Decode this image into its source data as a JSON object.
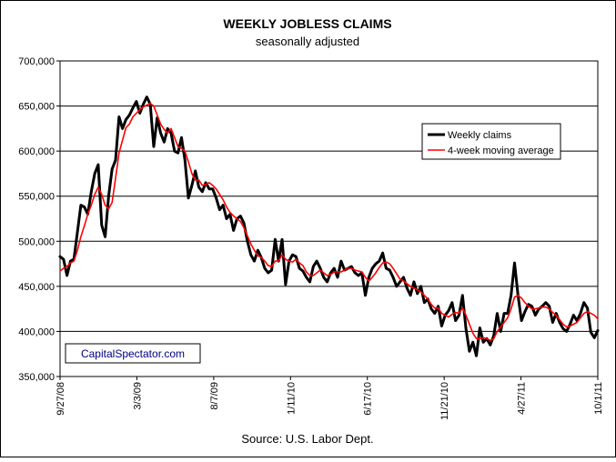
{
  "chart_data": {
    "type": "line",
    "title": "WEEKLY JOBLESS CLAIMS",
    "subtitle": "seasonally adjusted",
    "source": "Source: U.S. Labor Dept.",
    "watermark": "CapitalSpectator.com",
    "x_ticks": [
      "9/27/08",
      "3/3/09",
      "8/7/09",
      "1/11/10",
      "6/17/10",
      "11/21/10",
      "4/27/11",
      "10/1/11"
    ],
    "y_ticks": [
      "350,000",
      "400,000",
      "450,000",
      "500,000",
      "550,000",
      "600,000",
      "650,000",
      "700,000"
    ],
    "ylim": [
      350000,
      700000
    ],
    "grid": "horizontal",
    "legend_position": "right",
    "series": [
      {
        "name": "Weekly claims",
        "color": "#000000",
        "values": [
          483000,
          480000,
          462000,
          478000,
          480000,
          510000,
          540000,
          538000,
          530000,
          555000,
          575000,
          585000,
          518000,
          505000,
          550000,
          580000,
          590000,
          638000,
          625000,
          635000,
          640000,
          648000,
          655000,
          642000,
          652000,
          660000,
          652000,
          605000,
          637000,
          620000,
          610000,
          625000,
          620000,
          600000,
          598000,
          615000,
          590000,
          548000,
          562000,
          578000,
          560000,
          555000,
          565000,
          558000,
          558000,
          548000,
          535000,
          540000,
          525000,
          530000,
          512000,
          525000,
          528000,
          520000,
          500000,
          485000,
          478000,
          490000,
          482000,
          470000,
          465000,
          468000,
          502000,
          478000,
          502000,
          452000,
          478000,
          485000,
          483000,
          470000,
          467000,
          460000,
          455000,
          472000,
          478000,
          470000,
          460000,
          455000,
          465000,
          470000,
          460000,
          478000,
          468000,
          470000,
          472000,
          465000,
          462000,
          465000,
          440000,
          460000,
          470000,
          475000,
          478000,
          487000,
          470000,
          468000,
          460000,
          450000,
          455000,
          460000,
          448000,
          440000,
          455000,
          442000,
          450000,
          432000,
          436000,
          425000,
          420000,
          428000,
          406000,
          418000,
          423000,
          432000,
          412000,
          418000,
          440000,
          403000,
          378000,
          388000,
          373000,
          404000,
          388000,
          392000,
          385000,
          395000,
          420000,
          400000,
          420000,
          420000,
          440000,
          476000,
          440000,
          412000,
          422000,
          430000,
          428000,
          418000,
          425000,
          428000,
          432000,
          428000,
          410000,
          420000,
          410000,
          403000,
          400000,
          408000,
          418000,
          412000,
          420000,
          432000,
          426000,
          399000,
          393000,
          401000
        ]
      },
      {
        "name": "4-week moving average",
        "color": "#ff0000",
        "values": [
          467000,
          470000,
          472000,
          476000,
          478000,
          490000,
          505000,
          517000,
          530000,
          540000,
          552000,
          560000,
          552000,
          540000,
          536000,
          543000,
          570000,
          598000,
          612000,
          626000,
          630000,
          638000,
          642000,
          646000,
          649000,
          651000,
          653000,
          650000,
          640000,
          630000,
          624000,
          620000,
          625000,
          615000,
          605000,
          603000,
          600000,
          588000,
          575000,
          568000,
          568000,
          562000,
          563000,
          565000,
          562000,
          558000,
          552000,
          546000,
          538000,
          532000,
          528000,
          525000,
          522000,
          515000,
          506000,
          497000,
          490000,
          484000,
          482000,
          478000,
          473000,
          472000,
          478000,
          478000,
          485000,
          480000,
          478000,
          477000,
          480000,
          476000,
          473000,
          466000,
          462000,
          462000,
          465000,
          468000,
          465000,
          462000,
          463000,
          466000,
          466000,
          466000,
          468000,
          470000,
          470000,
          468000,
          467000,
          466000,
          460000,
          456000,
          460000,
          465000,
          471000,
          476000,
          477000,
          475000,
          470000,
          464000,
          458000,
          456000,
          453000,
          450000,
          448000,
          446000,
          444000,
          440000,
          436000,
          430000,
          426000,
          426000,
          420000,
          418000,
          416000,
          419000,
          421000,
          420000,
          426000,
          418000,
          408000,
          398000,
          392000,
          392000,
          393000,
          392000,
          390000,
          392000,
          400000,
          405000,
          410000,
          415000,
          425000,
          438000,
          440000,
          437000,
          432000,
          428000,
          425000,
          425000,
          426000,
          427000,
          427000,
          425000,
          421000,
          418000,
          413000,
          408000,
          405000,
          406000,
          408000,
          410000,
          415000,
          420000,
          422000,
          420000,
          418000,
          414000
        ]
      }
    ]
  }
}
